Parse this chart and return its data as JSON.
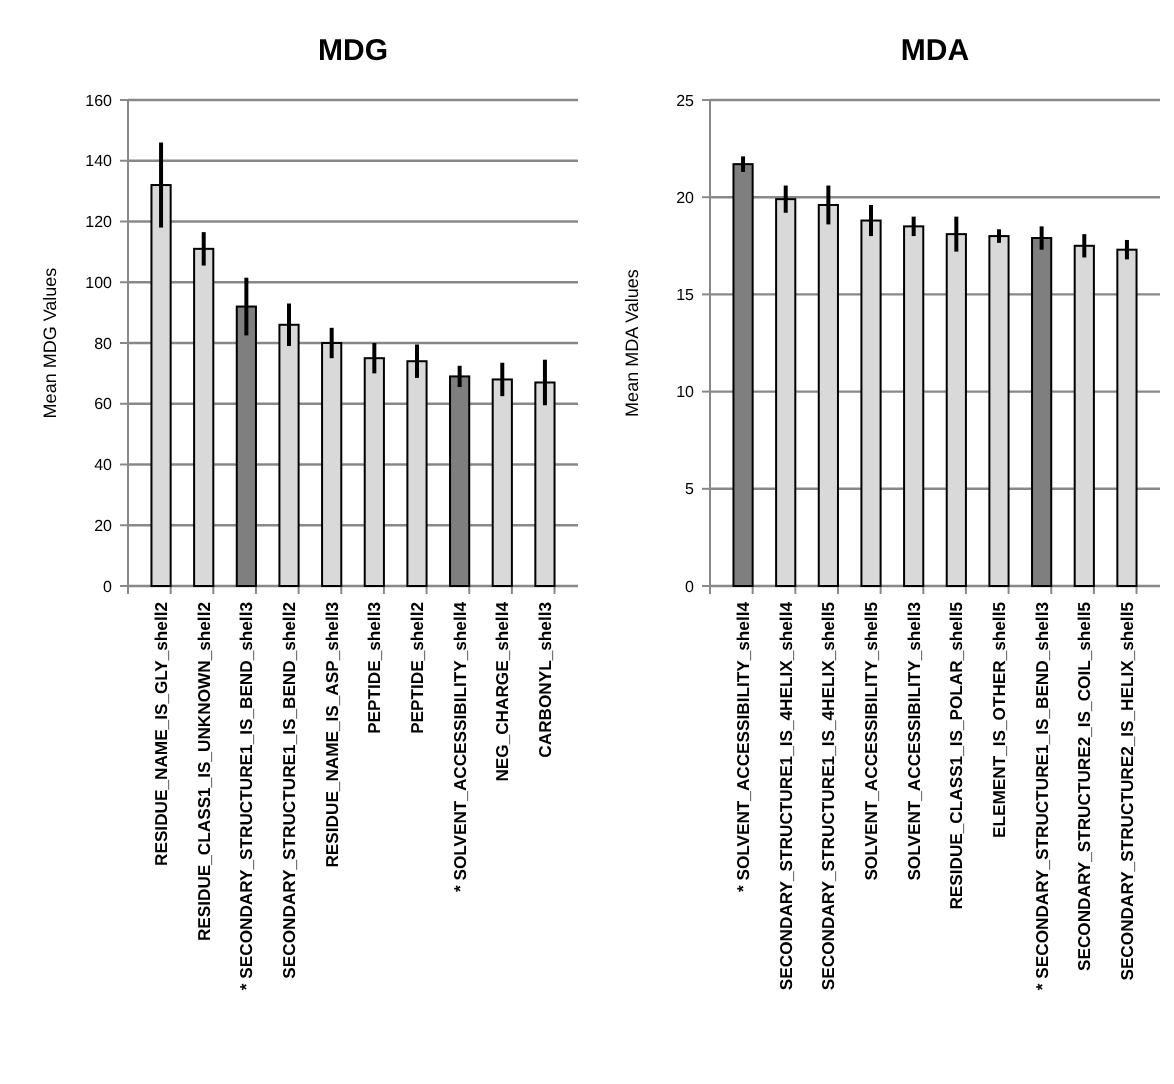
{
  "chart_data": [
    {
      "type": "bar",
      "title": "MDG",
      "ylabel": "Mean MDG Values",
      "categories": [
        "RESIDUE_NAME_IS_GLY_shell2",
        "RESIDUE_CLASS1_IS_UNKNOWN_shell2",
        "* SECONDARY_STRUCTURE1_IS_BEND_shell3",
        "SECONDARY_STRUCTURE1_IS_BEND_shell2",
        "RESIDUE_NAME_IS_ASP_shell3",
        "PEPTIDE_shell3",
        "PEPTIDE_shell2",
        "* SOLVENT_ACCESSIBILITY_shell4",
        "NEG_CHARGE_shell4",
        "CARBONYL_shell3"
      ],
      "values": [
        132,
        111,
        92,
        86,
        80,
        75,
        74,
        69,
        68,
        67
      ],
      "errors": [
        14,
        5.5,
        9.5,
        7,
        5,
        5,
        5.5,
        3.5,
        5.5,
        7.5
      ],
      "colors": [
        "#d9d9d9",
        "#d9d9d9",
        "#7f7f7f",
        "#d9d9d9",
        "#d9d9d9",
        "#d9d9d9",
        "#d9d9d9",
        "#7f7f7f",
        "#d9d9d9",
        "#d9d9d9"
      ],
      "ylim": [
        0,
        160
      ],
      "yticks": [
        0,
        20,
        40,
        60,
        80,
        100,
        120,
        140,
        160
      ],
      "grid": "y"
    },
    {
      "type": "bar",
      "title": "MDA",
      "ylabel": "Mean MDA Values",
      "categories": [
        "* SOLVENT_ACCESSIBILITY_shell4",
        "SECONDARY_STRUCTURE1_IS_4HELIX_shell4",
        "SECONDARY_STRUCTURE1_IS_4HELIX_shell5",
        "SOLVENT_ACCESSIBILITY_shell5",
        "SOLVENT_ACCESSIBILITY_shell3",
        "RESIDUE_CLASS1_IS_POLAR_shell5",
        "ELEMENT_IS_OTHER_shell5",
        "* SECONDARY_STRUCTURE1_IS_BEND_shell3",
        "SECONDARY_STRUCTURE2_IS_COIL_shell5",
        "SECONDARY_STRUCTURE2_IS_HELIX_shell5"
      ],
      "values": [
        21.7,
        19.9,
        19.6,
        18.8,
        18.5,
        18.1,
        18.0,
        17.9,
        17.5,
        17.3
      ],
      "errors": [
        0.4,
        0.7,
        1,
        0.8,
        0.5,
        0.9,
        0.35,
        0.6,
        0.6,
        0.5
      ],
      "colors": [
        "#7f7f7f",
        "#d9d9d9",
        "#d9d9d9",
        "#d9d9d9",
        "#d9d9d9",
        "#d9d9d9",
        "#d9d9d9",
        "#7f7f7f",
        "#d9d9d9",
        "#d9d9d9"
      ],
      "ylim": [
        0,
        25
      ],
      "yticks": [
        0,
        5,
        10,
        15,
        20,
        25
      ],
      "grid": "y"
    }
  ]
}
